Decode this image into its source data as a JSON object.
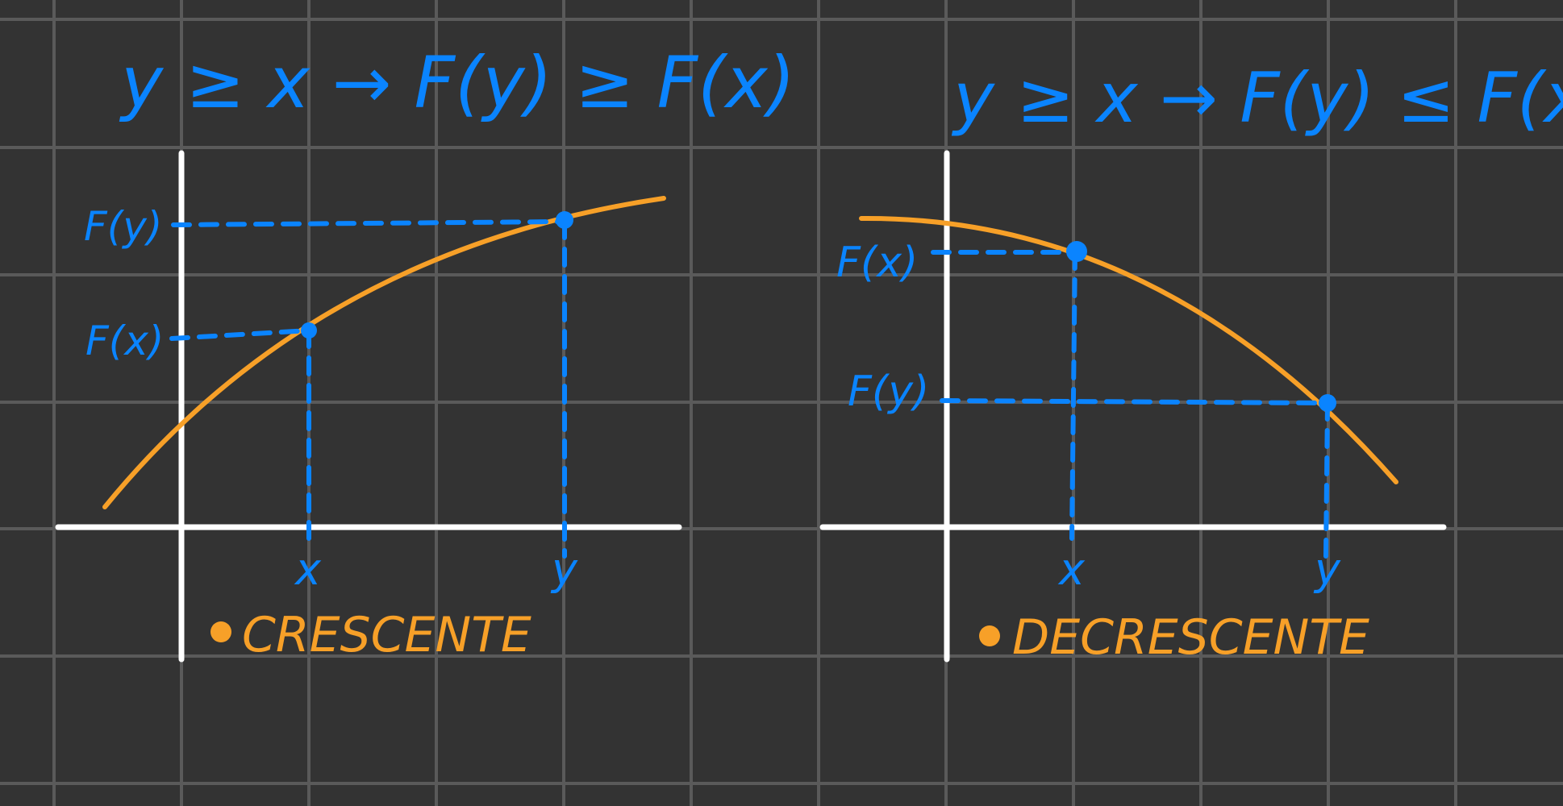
{
  "colors": {
    "background": "#333333",
    "grid": "#5A5A5A",
    "axis": "#FFFFFF",
    "curve": "#F7A028",
    "annotation": "#0A84FF",
    "caption": "#F7A028"
  },
  "left_panel": {
    "formula": "y ≥ x → F(y) ≥ F(x)",
    "fy_label": "F(y)",
    "fx_label": "F(x)",
    "x_label": "x",
    "y_label": "y",
    "caption": "CRESCENTE"
  },
  "right_panel": {
    "formula": "y ≥ x → F(y) ≤ F(x)",
    "fx_label": "F(x)",
    "fy_label": "F(y)",
    "x_label": "x",
    "y_label": "y",
    "caption": "DECRESCENTE"
  }
}
